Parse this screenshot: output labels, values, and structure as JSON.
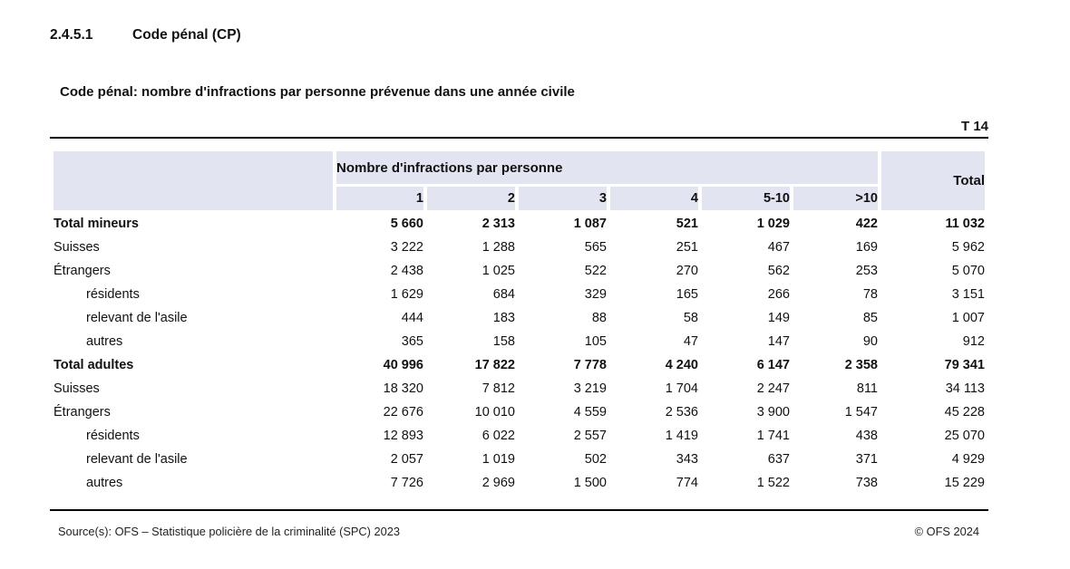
{
  "header": {
    "section_number": "2.4.5.1",
    "section_title": "Code pénal (CP)",
    "table_title": "Code pénal: nombre d'infractions par personne prévenue dans une année civile",
    "table_ref": "T 14"
  },
  "table": {
    "group_header": "Nombre d'infractions par personne",
    "columns": [
      "1",
      "2",
      "3",
      "4",
      "5-10",
      ">10"
    ],
    "total_label": "Total",
    "rows": [
      {
        "label": "Total mineurs",
        "bold": true,
        "indent": false,
        "values": [
          "5 660",
          "2 313",
          "1 087",
          "521",
          "1 029",
          "422",
          "11 032"
        ]
      },
      {
        "label": "Suisses",
        "bold": false,
        "indent": false,
        "values": [
          "3 222",
          "1 288",
          "565",
          "251",
          "467",
          "169",
          "5 962"
        ]
      },
      {
        "label": "Étrangers",
        "bold": false,
        "indent": false,
        "values": [
          "2 438",
          "1 025",
          "522",
          "270",
          "562",
          "253",
          "5 070"
        ]
      },
      {
        "label": "résidents",
        "bold": false,
        "indent": true,
        "values": [
          "1 629",
          "684",
          "329",
          "165",
          "266",
          "78",
          "3 151"
        ]
      },
      {
        "label": "relevant de l'asile",
        "bold": false,
        "indent": true,
        "values": [
          "444",
          "183",
          "88",
          "58",
          "149",
          "85",
          "1 007"
        ]
      },
      {
        "label": "autres",
        "bold": false,
        "indent": true,
        "values": [
          "365",
          "158",
          "105",
          "47",
          "147",
          "90",
          "912"
        ]
      },
      {
        "label": "Total adultes",
        "bold": true,
        "indent": false,
        "values": [
          "40 996",
          "17 822",
          "7 778",
          "4 240",
          "6 147",
          "2 358",
          "79 341"
        ]
      },
      {
        "label": "Suisses",
        "bold": false,
        "indent": false,
        "values": [
          "18 320",
          "7 812",
          "3 219",
          "1 704",
          "2 247",
          "811",
          "34 113"
        ]
      },
      {
        "label": "Étrangers",
        "bold": false,
        "indent": false,
        "values": [
          "22 676",
          "10 010",
          "4 559",
          "2 536",
          "3 900",
          "1 547",
          "45 228"
        ]
      },
      {
        "label": "résidents",
        "bold": false,
        "indent": true,
        "values": [
          "12 893",
          "6 022",
          "2 557",
          "1 419",
          "1 741",
          "438",
          "25 070"
        ]
      },
      {
        "label": "relevant de l'asile",
        "bold": false,
        "indent": true,
        "values": [
          "2 057",
          "1 019",
          "502",
          "343",
          "637",
          "371",
          "4 929"
        ]
      },
      {
        "label": "autres",
        "bold": false,
        "indent": true,
        "values": [
          "7 726",
          "2 969",
          "1 500",
          "774",
          "1 522",
          "738",
          "15 229"
        ]
      }
    ]
  },
  "footer": {
    "source": "Source(s): OFS – Statistique policière de la criminalité (SPC) 2023",
    "copyright": "© OFS 2024"
  },
  "colors": {
    "header_bg": "#e2e5f1",
    "text": "#111111",
    "rule": "#000000"
  }
}
